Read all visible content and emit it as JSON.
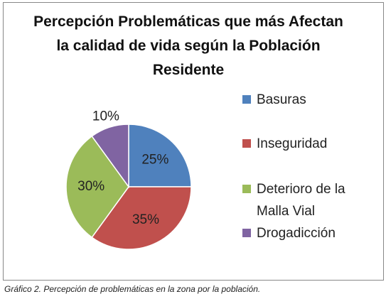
{
  "chart_data": {
    "type": "pie",
    "title": "Percepción Problemáticas que más Afectan la calidad de vida según la Población Residente",
    "categories": [
      "Basuras",
      "Inseguridad",
      "Deterioro de la Malla Vial",
      "Drogadicción"
    ],
    "values": [
      25,
      35,
      30,
      10
    ],
    "value_labels": [
      "25%",
      "35%",
      "30%",
      "10%"
    ],
    "colors": [
      "#4f81bd",
      "#c0504d",
      "#9bbb59",
      "#8064a2"
    ],
    "legend": "right"
  },
  "caption": "Gráfico 2. Percepción de problemáticas en la zona por la población."
}
